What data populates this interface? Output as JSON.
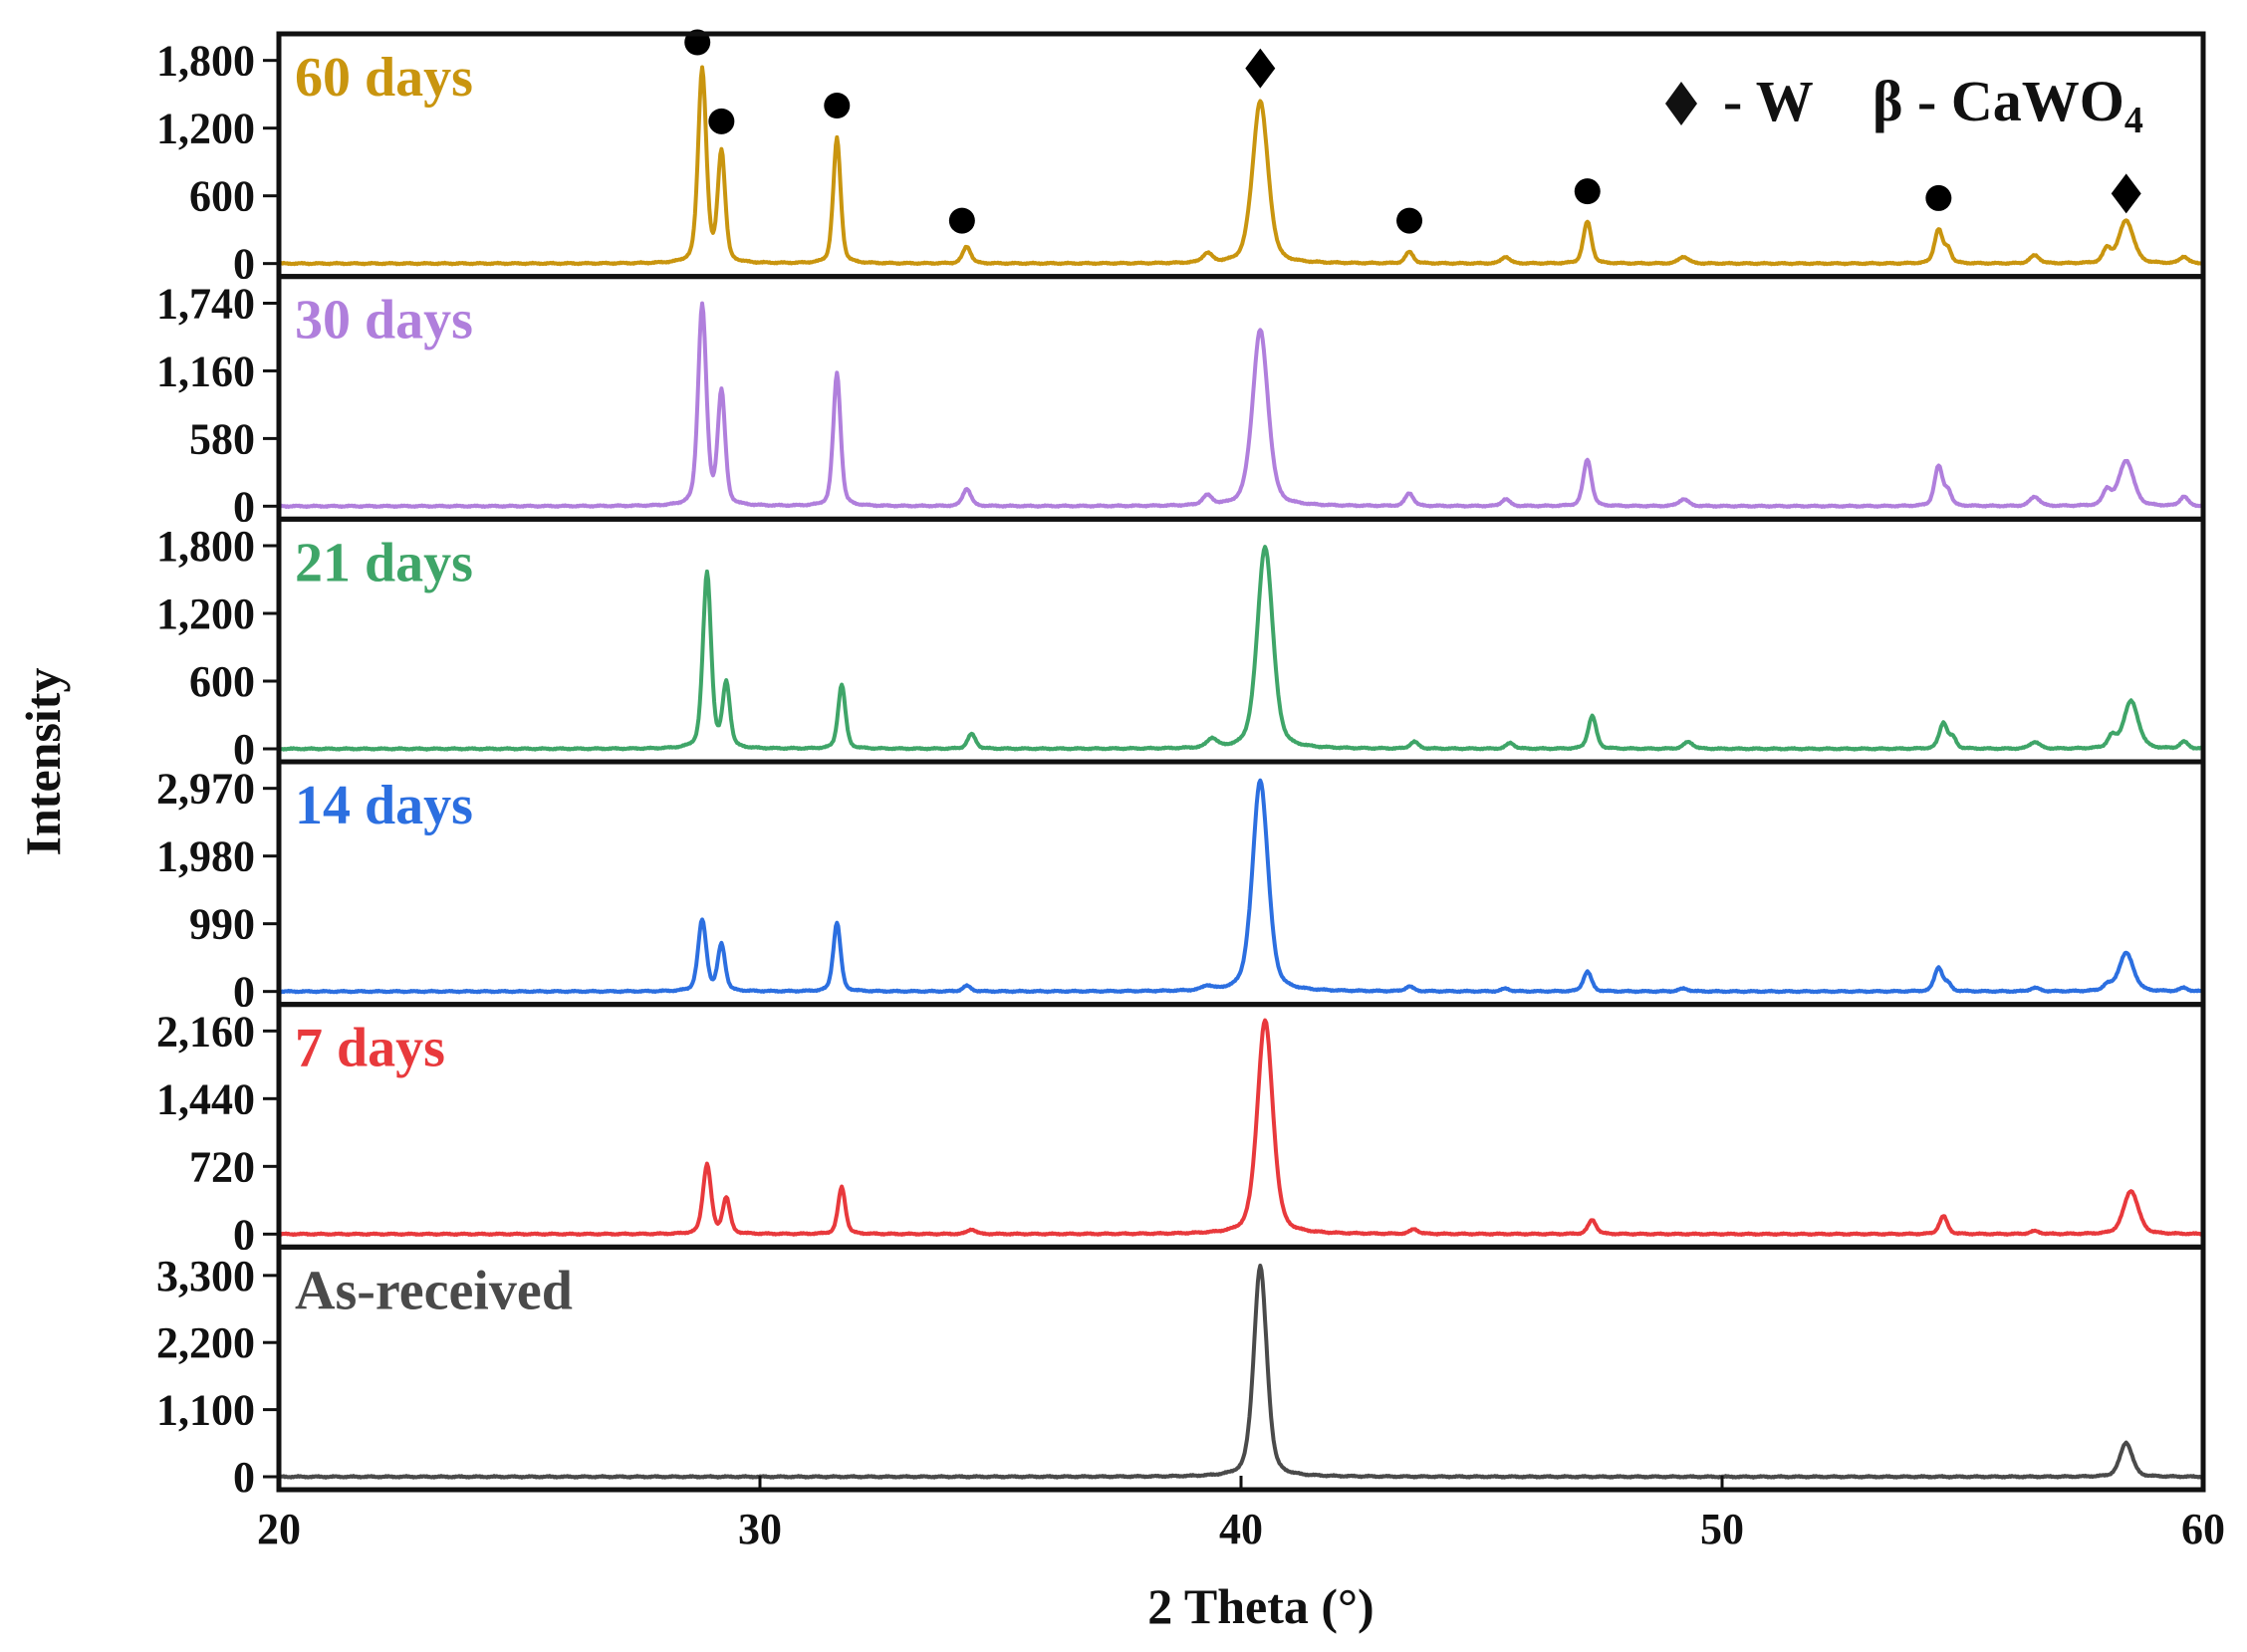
{
  "chart_data": {
    "type": "line",
    "xlabel": "2 Theta (°)",
    "ylabel": "Intensity",
    "xlim": [
      20,
      60
    ],
    "x_ticks": [
      "20",
      "30",
      "40",
      "50",
      "60"
    ],
    "legend": {
      "w_label": "- W",
      "cawo4_label": "β - CaWO",
      "cawo4_sub": "4"
    },
    "panels": [
      {
        "name": "60 days",
        "color": "#C9950F",
        "ymax": 2000,
        "ticks": [
          {
            "v": 0,
            "t": "0"
          },
          {
            "v": 600,
            "t": "600"
          },
          {
            "v": 1200,
            "t": "1,200"
          },
          {
            "v": 1800,
            "t": "1,800"
          }
        ],
        "peaks": [
          [
            28.8,
            1720,
            0.1
          ],
          [
            29.2,
            980,
            0.09
          ],
          [
            31.6,
            1110,
            0.09
          ],
          [
            34.3,
            150,
            0.1
          ],
          [
            39.3,
            80,
            0.12
          ],
          [
            40.4,
            1440,
            0.19
          ],
          [
            43.5,
            100,
            0.1
          ],
          [
            45.5,
            60,
            0.1
          ],
          [
            47.2,
            370,
            0.1
          ],
          [
            49.2,
            60,
            0.12
          ],
          [
            54.5,
            300,
            0.1
          ],
          [
            54.7,
            120,
            0.08
          ],
          [
            56.5,
            70,
            0.12
          ],
          [
            58.0,
            120,
            0.1
          ],
          [
            58.4,
            380,
            0.18
          ],
          [
            59.6,
            60,
            0.1
          ]
        ],
        "markers": [
          {
            "x": 28.7,
            "y": 1960,
            "shape": "circle"
          },
          {
            "x": 29.2,
            "y": 1260,
            "shape": "circle"
          },
          {
            "x": 31.6,
            "y": 1400,
            "shape": "circle"
          },
          {
            "x": 34.2,
            "y": 380,
            "shape": "circle"
          },
          {
            "x": 40.4,
            "y": 1730,
            "shape": "diamond"
          },
          {
            "x": 43.5,
            "y": 380,
            "shape": "circle"
          },
          {
            "x": 47.2,
            "y": 640,
            "shape": "circle"
          },
          {
            "x": 54.5,
            "y": 580,
            "shape": "circle"
          },
          {
            "x": 58.4,
            "y": 620,
            "shape": "diamond"
          }
        ]
      },
      {
        "name": "30 days",
        "color": "#B07FDC",
        "ymax": 1935,
        "ticks": [
          {
            "v": 0,
            "t": "0"
          },
          {
            "v": 580,
            "t": "580"
          },
          {
            "v": 1160,
            "t": "1,160"
          },
          {
            "v": 1740,
            "t": "1,740"
          }
        ],
        "peaks": [
          [
            28.8,
            1720,
            0.1
          ],
          [
            29.2,
            970,
            0.09
          ],
          [
            31.6,
            1140,
            0.09
          ],
          [
            34.3,
            150,
            0.1
          ],
          [
            39.3,
            80,
            0.12
          ],
          [
            40.4,
            1510,
            0.19
          ],
          [
            43.5,
            110,
            0.1
          ],
          [
            45.5,
            60,
            0.1
          ],
          [
            47.2,
            400,
            0.1
          ],
          [
            49.2,
            60,
            0.12
          ],
          [
            54.5,
            340,
            0.1
          ],
          [
            54.7,
            120,
            0.08
          ],
          [
            56.5,
            80,
            0.12
          ],
          [
            58.0,
            130,
            0.1
          ],
          [
            58.4,
            390,
            0.18
          ],
          [
            59.6,
            80,
            0.1
          ]
        ],
        "markers": []
      },
      {
        "name": "21 days",
        "color": "#3FA568",
        "ymax": 2000,
        "ticks": [
          {
            "v": 0,
            "t": "0"
          },
          {
            "v": 600,
            "t": "600"
          },
          {
            "v": 1200,
            "t": "1,200"
          },
          {
            "v": 1800,
            "t": "1,800"
          }
        ],
        "peaks": [
          [
            28.9,
            1560,
            0.1
          ],
          [
            29.3,
            570,
            0.09
          ],
          [
            31.7,
            570,
            0.09
          ],
          [
            34.4,
            130,
            0.1
          ],
          [
            39.4,
            80,
            0.12
          ],
          [
            40.5,
            1790,
            0.19
          ],
          [
            43.6,
            60,
            0.1
          ],
          [
            45.6,
            50,
            0.1
          ],
          [
            47.3,
            290,
            0.1
          ],
          [
            49.3,
            60,
            0.12
          ],
          [
            54.6,
            230,
            0.1
          ],
          [
            54.8,
            90,
            0.08
          ],
          [
            56.5,
            60,
            0.12
          ],
          [
            58.1,
            100,
            0.1
          ],
          [
            58.5,
            420,
            0.18
          ],
          [
            59.6,
            60,
            0.1
          ]
        ],
        "markers": []
      },
      {
        "name": "14 days",
        "color": "#2C6FE0",
        "ymax": 3300,
        "ticks": [
          {
            "v": 0,
            "t": "0"
          },
          {
            "v": 990,
            "t": "990"
          },
          {
            "v": 1980,
            "t": "1,980"
          },
          {
            "v": 2970,
            "t": "2,970"
          }
        ],
        "peaks": [
          [
            28.8,
            1040,
            0.1
          ],
          [
            29.2,
            680,
            0.09
          ],
          [
            31.6,
            1010,
            0.09
          ],
          [
            34.3,
            80,
            0.1
          ],
          [
            39.3,
            60,
            0.12
          ],
          [
            40.4,
            3090,
            0.19
          ],
          [
            43.5,
            70,
            0.1
          ],
          [
            45.5,
            40,
            0.1
          ],
          [
            47.2,
            290,
            0.1
          ],
          [
            49.2,
            40,
            0.12
          ],
          [
            54.5,
            350,
            0.1
          ],
          [
            54.7,
            100,
            0.08
          ],
          [
            56.5,
            50,
            0.12
          ],
          [
            58.0,
            80,
            0.1
          ],
          [
            58.4,
            560,
            0.18
          ],
          [
            59.6,
            50,
            0.1
          ]
        ],
        "markers": []
      },
      {
        "name": "7 days",
        "color": "#E8393C",
        "ymax": 2400,
        "ticks": [
          {
            "v": 0,
            "t": "0"
          },
          {
            "v": 720,
            "t": "720"
          },
          {
            "v": 1440,
            "t": "1,440"
          },
          {
            "v": 2160,
            "t": "2,160"
          }
        ],
        "peaks": [
          [
            28.9,
            740,
            0.1
          ],
          [
            29.3,
            380,
            0.09
          ],
          [
            31.7,
            500,
            0.09
          ],
          [
            34.4,
            50,
            0.1
          ],
          [
            40.5,
            2270,
            0.19
          ],
          [
            43.6,
            50,
            0.1
          ],
          [
            47.3,
            150,
            0.1
          ],
          [
            54.6,
            190,
            0.1
          ],
          [
            56.5,
            30,
            0.12
          ],
          [
            58.5,
            460,
            0.18
          ]
        ],
        "markers": []
      },
      {
        "name": "As-received",
        "color": "#4A4A4A",
        "ymax": 3700,
        "ticks": [
          {
            "v": 0,
            "t": "0"
          },
          {
            "v": 1100,
            "t": "1,100"
          },
          {
            "v": 2200,
            "t": "2,200"
          },
          {
            "v": 3300,
            "t": "3,300"
          }
        ],
        "peaks": [
          [
            40.4,
            3450,
            0.16
          ],
          [
            58.4,
            560,
            0.15
          ]
        ],
        "markers": []
      }
    ]
  }
}
